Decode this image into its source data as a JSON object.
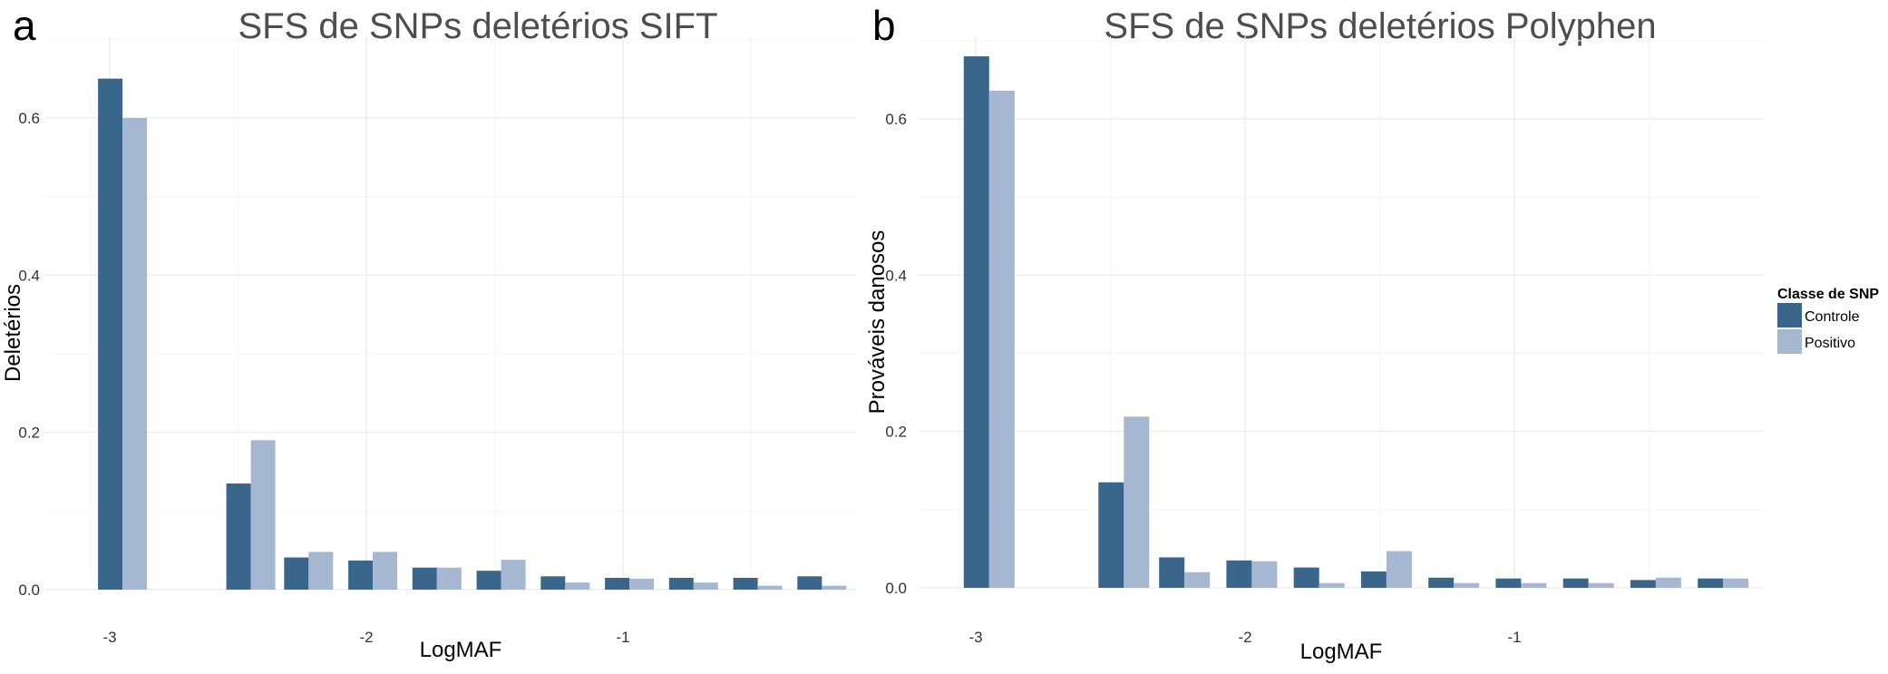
{
  "panels": [
    {
      "letter": "a"
    },
    {
      "letter": "b"
    }
  ],
  "legend": {
    "title": "Classe de SNP",
    "entries": [
      {
        "label": "Controle",
        "color": "#3a668c"
      },
      {
        "label": "Positivo",
        "color": "#a5b7d1"
      }
    ]
  },
  "chart_data": [
    {
      "type": "bar",
      "title": "SFS de SNPs deletérios SIFT",
      "xlabel": "LogMAF",
      "ylabel": "Deletérios",
      "x_ticks": [
        "-3",
        "-2",
        "-1"
      ],
      "y_ticks": [
        "0.0",
        "0.2",
        "0.4",
        "0.6"
      ],
      "xlim": [
        -3.3,
        -0.05
      ],
      "ylim": [
        0,
        0.68
      ],
      "grid": true,
      "x_bins": [
        -2.95,
        -2.45,
        -2.225,
        -1.975,
        -1.725,
        -1.475,
        -1.225,
        -0.975,
        -0.725,
        -0.475,
        -0.225
      ],
      "series": [
        {
          "name": "Controle",
          "values": [
            0.65,
            0.135,
            0.041,
            0.037,
            0.028,
            0.024,
            0.017,
            0.015,
            0.015,
            0.015,
            0.017
          ]
        },
        {
          "name": "Positivo",
          "values": [
            0.6,
            0.19,
            0.048,
            0.048,
            0.028,
            0.038,
            0.009,
            0.014,
            0.009,
            0.005,
            0.005
          ]
        }
      ]
    },
    {
      "type": "bar",
      "title": "SFS de SNPs deletérios Polyphen",
      "xlabel": "LogMAF",
      "ylabel": "Prováveis danosos",
      "x_ticks": [
        "-3",
        "-2",
        "-1"
      ],
      "y_ticks": [
        "0.0",
        "0.2",
        "0.4",
        "0.6"
      ],
      "xlim": [
        -3.3,
        -0.05
      ],
      "ylim": [
        0,
        0.68
      ],
      "grid": true,
      "x_bins": [
        -2.95,
        -2.45,
        -2.225,
        -1.975,
        -1.725,
        -1.475,
        -1.225,
        -0.975,
        -0.725,
        -0.475,
        -0.225
      ],
      "series": [
        {
          "name": "Controle",
          "values": [
            0.68,
            0.135,
            0.039,
            0.035,
            0.026,
            0.021,
            0.013,
            0.012,
            0.012,
            0.01,
            0.012
          ]
        },
        {
          "name": "Positivo",
          "values": [
            0.636,
            0.219,
            0.02,
            0.034,
            0.006,
            0.047,
            0.006,
            0.006,
            0.006,
            0.013,
            0.012
          ]
        }
      ]
    }
  ]
}
